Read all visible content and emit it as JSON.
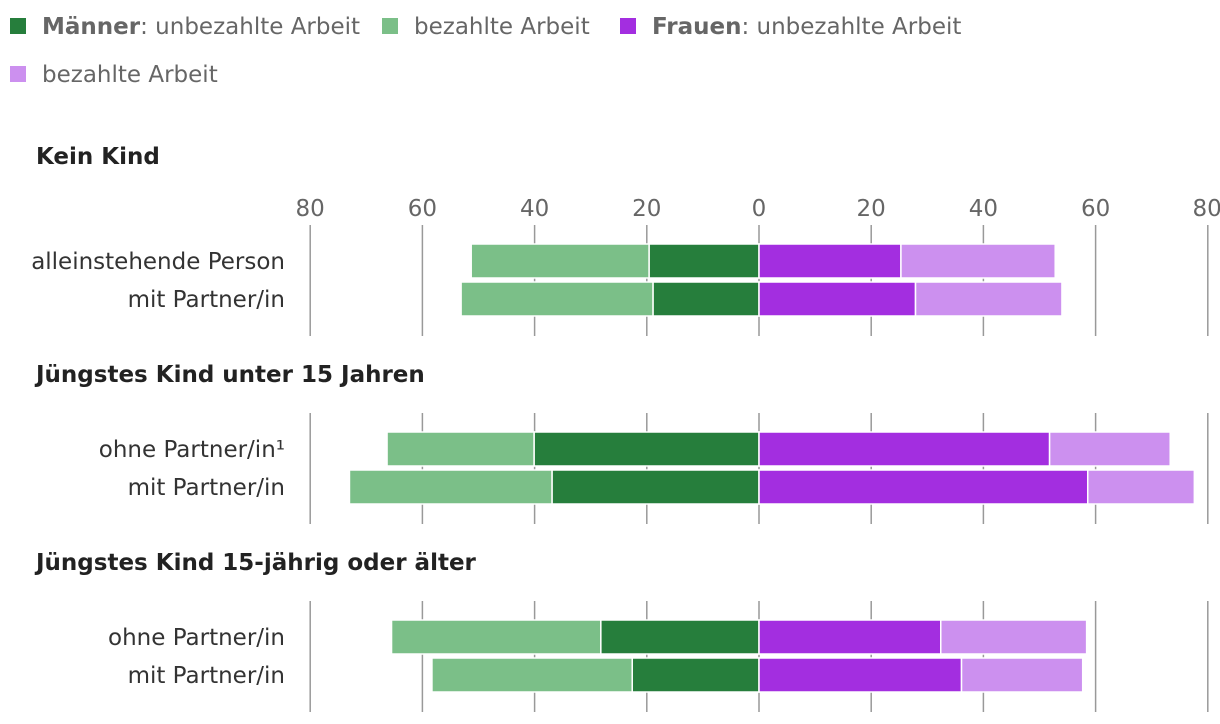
{
  "chart_data": {
    "type": "bar",
    "orientation": "horizontal-diverging",
    "legend": [
      {
        "bold": "Männer",
        "text": ": unbezahlte Arbeit",
        "color": "#267e3c"
      },
      {
        "bold": "",
        "text": "bezahlte Arbeit",
        "color": "#7bbf88"
      },
      {
        "bold": "Frauen",
        "text": ": unbezahlte Arbeit",
        "color": "#a32ee0"
      },
      {
        "bold": "",
        "text": "bezahlte Arbeit",
        "color": "#cc90ef"
      }
    ],
    "axis": {
      "min": -80,
      "max": 80,
      "ticks": [
        -80,
        -60,
        -40,
        -20,
        0,
        20,
        40,
        60,
        80
      ],
      "tick_labels": [
        "80",
        "60",
        "40",
        "20",
        "0",
        "20",
        "40",
        "60",
        "80"
      ]
    },
    "groups": [
      {
        "title": "Kein Kind",
        "rows": [
          {
            "label": "alleinstehende Person",
            "men_unpaid": 19.6,
            "men_paid": 31.7,
            "women_unpaid": 25.3,
            "women_paid": 27.5
          },
          {
            "label": "mit Partner/in",
            "men_unpaid": 18.9,
            "men_paid": 34.2,
            "women_unpaid": 27.9,
            "women_paid": 26.1
          }
        ]
      },
      {
        "title": "Jüngstes Kind unter 15 Jahren",
        "rows": [
          {
            "label": "ohne Partner/in¹",
            "men_unpaid": 40.1,
            "men_paid": 26.2,
            "women_unpaid": 51.8,
            "women_paid": 21.5
          },
          {
            "label": "mit Partner/in",
            "men_unpaid": 36.9,
            "men_paid": 36.1,
            "women_unpaid": 58.6,
            "women_paid": 19.0
          }
        ]
      },
      {
        "title": "Jüngstes Kind 15-jährig oder älter",
        "rows": [
          {
            "label": "ohne Partner/in",
            "men_unpaid": 28.2,
            "men_paid": 37.3,
            "women_unpaid": 32.4,
            "women_paid": 26.0
          },
          {
            "label": "mit Partner/in",
            "men_unpaid": 22.6,
            "men_paid": 35.7,
            "women_unpaid": 36.1,
            "women_paid": 21.6
          }
        ]
      }
    ]
  }
}
